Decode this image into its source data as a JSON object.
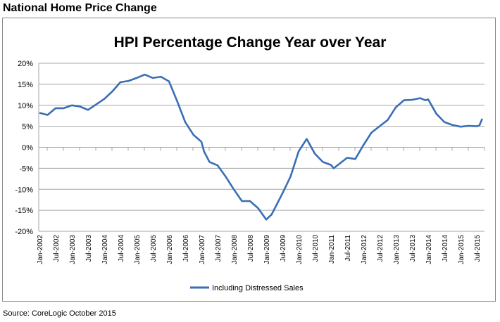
{
  "header": "National Home Price Change",
  "source": "Source: CoreLogic October 2015",
  "chart_data": {
    "type": "line",
    "title": "HPI Percentage Change Year over Year",
    "xlabel": "",
    "ylabel": "",
    "ylim": [
      -20,
      20
    ],
    "y_ticks": [
      "20%",
      "15%",
      "10%",
      "5%",
      "0%",
      "-5%",
      "-10%",
      "-15%",
      "-20%"
    ],
    "y_tick_values": [
      20,
      15,
      10,
      5,
      0,
      -5,
      -10,
      -15,
      -20
    ],
    "x_ticks": [
      "Jan-2002",
      "Jul-2002",
      "Jan-2003",
      "Jul-2003",
      "Jan-2004",
      "Jul-2004",
      "Jan-2005",
      "Jul-2005",
      "Jan-2006",
      "Jul-2006",
      "Jan-2007",
      "Jul-2007",
      "Jan-2008",
      "Jul-2008",
      "Jan-2009",
      "Jul-2009",
      "Jan-2010",
      "Jul-2010",
      "Jan-2011",
      "Jul-2011",
      "Jan-2012",
      "Jul-2012",
      "Jan-2013",
      "Jul-2013",
      "Jan-2014",
      "Jul-2014",
      "Jan-2015",
      "Jul-2015"
    ],
    "grid": true,
    "legend": "bottom",
    "series": [
      {
        "name": "Including Distressed Sales",
        "color": "#3a6eb5",
        "x": [
          "2002-01",
          "2002-04",
          "2002-07",
          "2002-10",
          "2003-01",
          "2003-04",
          "2003-07",
          "2003-10",
          "2004-01",
          "2004-04",
          "2004-07",
          "2004-10",
          "2005-01",
          "2005-04",
          "2005-07",
          "2005-10",
          "2006-01",
          "2006-04",
          "2006-07",
          "2006-10",
          "2007-01",
          "2007-02",
          "2007-04",
          "2007-07",
          "2007-10",
          "2008-01",
          "2008-04",
          "2008-07",
          "2008-10",
          "2009-01",
          "2009-03",
          "2009-07",
          "2009-10",
          "2010-01",
          "2010-04",
          "2010-07",
          "2010-10",
          "2011-01",
          "2011-02",
          "2011-07",
          "2011-10",
          "2012-01",
          "2012-04",
          "2012-07",
          "2012-10",
          "2013-01",
          "2013-04",
          "2013-07",
          "2013-10",
          "2013-12",
          "2014-01",
          "2014-04",
          "2014-07",
          "2014-10",
          "2015-01",
          "2015-04",
          "2015-07",
          "2015-08",
          "2015-09"
        ],
        "values": [
          8.2,
          7.7,
          9.3,
          9.3,
          10,
          9.7,
          8.9,
          10.2,
          11.5,
          13.3,
          15.5,
          15.8,
          16.5,
          17.3,
          16.5,
          16.8,
          15.7,
          11,
          6,
          3,
          1.3,
          -1,
          -3.5,
          -4.3,
          -7,
          -10,
          -12.8,
          -12.8,
          -14.5,
          -17.2,
          -16,
          -11,
          -7,
          -1,
          2,
          -1.5,
          -3.5,
          -4.2,
          -5,
          -2.5,
          -2.8,
          0.5,
          3.5,
          5,
          6.5,
          9.5,
          11.2,
          11.3,
          11.7,
          11.2,
          11.4,
          8,
          6,
          5.3,
          4.9,
          5.1,
          5,
          5.2,
          6.8
        ]
      }
    ]
  }
}
